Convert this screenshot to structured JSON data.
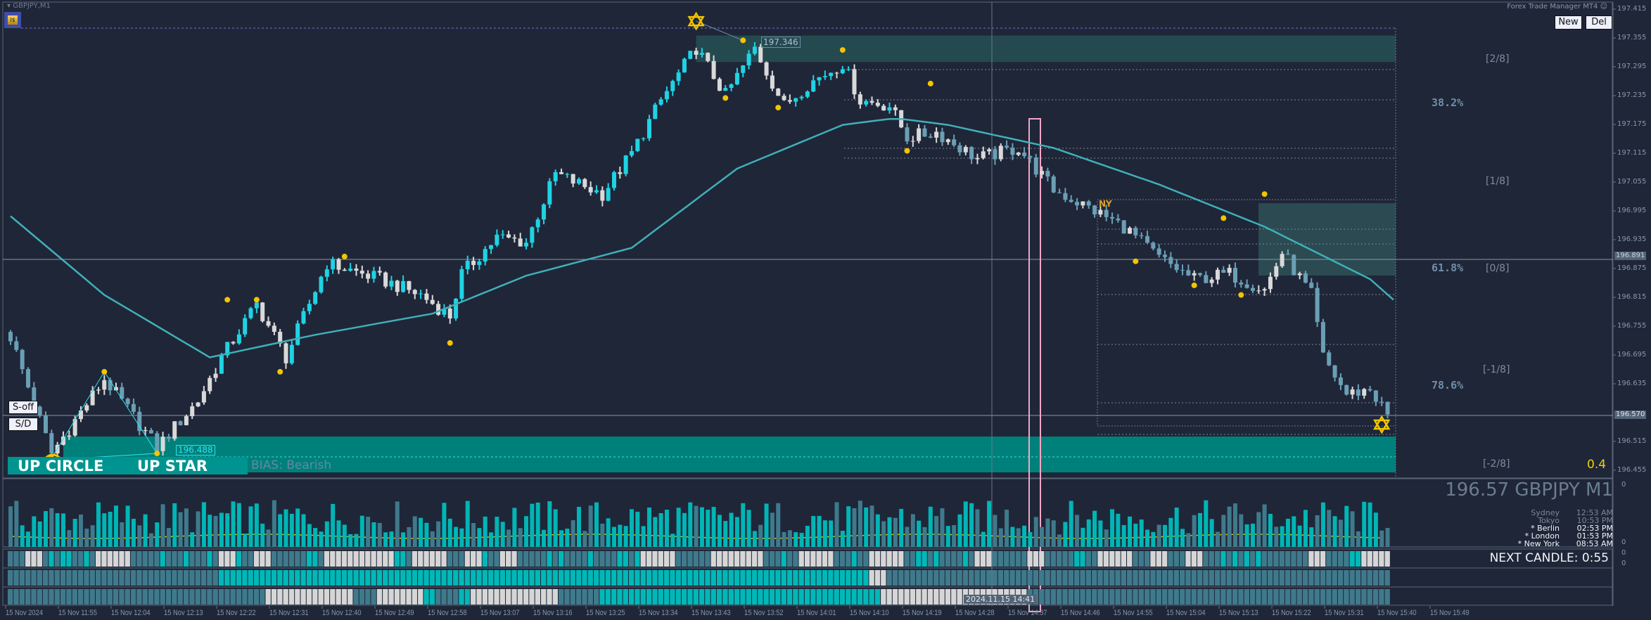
{
  "window": {
    "title": "GBPJPY,M1"
  },
  "header": {
    "ea_name": "Forex Trade Manager MT4",
    "new_label": "New",
    "del_label": "Del"
  },
  "price_axis": {
    "ticks": [
      "197.415",
      "197.355",
      "197.295",
      "197.235",
      "197.175",
      "197.115",
      "197.055",
      "196.995",
      "196.935",
      "196.875",
      "196.815",
      "196.755",
      "196.695",
      "196.635",
      "196.515",
      "196.455"
    ],
    "tick_values": [
      197.415,
      197.355,
      197.295,
      197.235,
      197.175,
      197.115,
      197.055,
      196.995,
      196.935,
      196.875,
      196.815,
      196.755,
      196.695,
      196.635,
      196.515,
      196.455
    ],
    "crosshair_price": "196.891",
    "bid_price": "196.570",
    "zero_labels": [
      "0",
      "0",
      "0",
      "0"
    ]
  },
  "overlay": {
    "soff_label": "S-off",
    "sd_label": "S/D",
    "up_circle": "UP CIRCLE",
    "up_star": "UP STAR",
    "bias": "BIAS: Bearish",
    "high_label": "197.346",
    "low_label": "196.488",
    "ny_label": "NY",
    "fib": {
      "f382": "38.2%",
      "f618": "61.8%",
      "f786": "78.6%"
    },
    "octaves": {
      "p2": "[2/8]",
      "p1": "[1/8]",
      "z": "[0/8]",
      "m1": "[-1/8]",
      "m2": "[-2/8]"
    },
    "ratio": "0.4"
  },
  "info_panel": {
    "symbol_price": "196.57 GBPJPY M1",
    "sessions": [
      {
        "city": "Sydney",
        "time": "12:53 AM",
        "active": false
      },
      {
        "city": "Tokyo",
        "time": "10:53 PM",
        "active": false
      },
      {
        "city": "* Berlin",
        "time": "02:53 PM",
        "active": true
      },
      {
        "city": "* London",
        "time": "01:53 PM",
        "active": true
      },
      {
        "city": "* New York",
        "time": "08:53 AM",
        "active": true
      }
    ],
    "next_candle": "NEXT CANDLE: 0:55"
  },
  "time_axis": {
    "labels": [
      "15 Nov 2024",
      "15 Nov 11:55",
      "15 Nov 12:04",
      "15 Nov 12:13",
      "15 Nov 12:22",
      "15 Nov 12:31",
      "15 Nov 12:40",
      "15 Nov 12:49",
      "15 Nov 12:58",
      "15 Nov 13:07",
      "15 Nov 13:16",
      "15 Nov 13:25",
      "15 Nov 13:34",
      "15 Nov 13:43",
      "15 Nov 13:52",
      "15 Nov 14:01",
      "15 Nov 14:10",
      "15 Nov 14:19",
      "15 Nov 14:28",
      "15 Nov 14:37",
      "15 Nov 14:46",
      "15 Nov 14:55",
      "15 Nov 15:04",
      "15 Nov 15:13",
      "15 Nov 15:22",
      "15 Nov 15:31",
      "15 Nov 15:40",
      "15 Nov 15:49"
    ],
    "crosshair_time": "2024.11.15 14:41"
  },
  "colors": {
    "bg": "#1f2638",
    "cyan": "#1fd3e3",
    "steel": "#6a9fb5",
    "white": "#d9d9d9",
    "ma": "#3fb0b8",
    "zone_low": "#00807a",
    "zone_high": "#244a50",
    "yellow": "#f2c500",
    "vol_cyan": "#00b5b5",
    "vol_steel": "#3f7a8c"
  },
  "chart_data": {
    "type": "candlestick",
    "symbol": "GBPJPY",
    "timeframe": "M1",
    "candle_count": 236,
    "close_anchors": [
      [
        0,
        196.733
      ],
      [
        7,
        196.49
      ],
      [
        16,
        196.645
      ],
      [
        25,
        196.503
      ],
      [
        32,
        196.6
      ],
      [
        36,
        196.69
      ],
      [
        42,
        196.8
      ],
      [
        47,
        196.69
      ],
      [
        54,
        196.886
      ],
      [
        63,
        196.853
      ],
      [
        70,
        196.82
      ],
      [
        75,
        196.776
      ],
      [
        77,
        196.864
      ],
      [
        83,
        196.94
      ],
      [
        88,
        196.93
      ],
      [
        93,
        197.072
      ],
      [
        101,
        197.03
      ],
      [
        106,
        197.115
      ],
      [
        111,
        197.225
      ],
      [
        117,
        197.334
      ],
      [
        122,
        197.236
      ],
      [
        127,
        197.334
      ],
      [
        132,
        197.214
      ],
      [
        136,
        197.258
      ],
      [
        142,
        197.302
      ],
      [
        145,
        197.225
      ],
      [
        150,
        197.214
      ],
      [
        153,
        197.148
      ],
      [
        158,
        197.159
      ],
      [
        165,
        197.104
      ],
      [
        172,
        197.126
      ],
      [
        178,
        197.039
      ],
      [
        185,
        196.995
      ],
      [
        190,
        196.962
      ],
      [
        196,
        196.897
      ],
      [
        202,
        196.853
      ],
      [
        208,
        196.864
      ],
      [
        214,
        196.831
      ],
      [
        217,
        196.908
      ],
      [
        222,
        196.82
      ],
      [
        224,
        196.69
      ],
      [
        228,
        196.613
      ],
      [
        232,
        196.624
      ],
      [
        235,
        196.57
      ]
    ],
    "ma_anchors": [
      [
        0,
        196.984
      ],
      [
        16,
        196.82
      ],
      [
        34,
        196.69
      ],
      [
        52,
        196.737
      ],
      [
        72,
        196.781
      ],
      [
        88,
        196.86
      ],
      [
        106,
        196.918
      ],
      [
        124,
        197.083
      ],
      [
        142,
        197.174
      ],
      [
        151,
        197.188
      ],
      [
        160,
        197.174
      ],
      [
        178,
        197.126
      ],
      [
        196,
        197.05
      ],
      [
        214,
        196.962
      ],
      [
        232,
        196.853
      ],
      [
        236,
        196.81
      ]
    ],
    "zones": [
      {
        "name": "supply",
        "from": 117,
        "high": 197.36,
        "low": 197.305
      },
      {
        "name": "demand",
        "from": 9,
        "high": 196.52,
        "low": 196.45
      }
    ],
    "swing_points": [
      [
        7,
        196.48
      ],
      [
        16,
        196.66
      ],
      [
        25,
        196.49
      ],
      [
        37,
        196.81
      ],
      [
        42,
        196.81
      ],
      [
        46,
        196.66
      ],
      [
        57,
        196.9
      ],
      [
        75,
        196.72
      ],
      [
        122,
        197.23
      ],
      [
        125,
        197.35
      ],
      [
        131,
        197.21
      ],
      [
        142,
        197.33
      ],
      [
        153,
        197.12
      ],
      [
        157,
        197.26
      ],
      [
        192,
        196.89
      ],
      [
        202,
        196.84
      ],
      [
        207,
        196.98
      ],
      [
        210,
        196.82
      ],
      [
        214,
        197.03
      ]
    ],
    "stars": [
      [
        117,
        197.39
      ],
      [
        234,
        196.55
      ]
    ],
    "indicator_rows": [
      {
        "name": "row1",
        "runs": [
          [
            0,
            236,
            "mix"
          ]
        ]
      },
      {
        "name": "row2",
        "runs": [
          [
            0,
            36,
            "steel"
          ],
          [
            36,
            147,
            "cyan"
          ],
          [
            147,
            150,
            "white"
          ],
          [
            150,
            236,
            "steel"
          ]
        ]
      },
      {
        "name": "row3",
        "runs": [
          [
            0,
            44,
            "steel"
          ],
          [
            44,
            59,
            "white"
          ],
          [
            59,
            63,
            "steel"
          ],
          [
            63,
            71,
            "white"
          ],
          [
            71,
            73,
            "cyan"
          ],
          [
            73,
            77,
            "steel"
          ],
          [
            77,
            79,
            "cyan"
          ],
          [
            79,
            94,
            "white"
          ],
          [
            94,
            101,
            "steel"
          ],
          [
            101,
            149,
            "cyan"
          ],
          [
            149,
            174,
            "white"
          ],
          [
            174,
            236,
            "steel"
          ]
        ]
      }
    ]
  }
}
